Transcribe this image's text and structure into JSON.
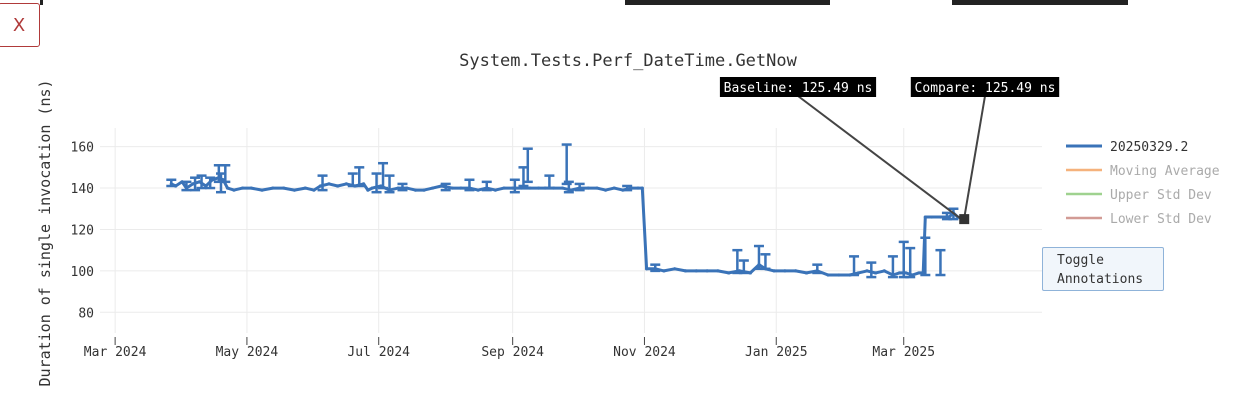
{
  "close_button_label": "X",
  "toggle_button_label": "Toggle Annotations",
  "colors": {
    "series": "#3a73b8",
    "moving_average": "#f5b27c",
    "upper_std": "#9fd28f",
    "lower_std": "#d29b95",
    "grid": "#ebebeb",
    "annotation_bg": "#000000"
  },
  "chart_data": {
    "type": "line",
    "title": "System.Tests.Perf_DateTime.GetNow",
    "ylabel": "Duration of single invocation (ns)",
    "xlabel": "",
    "xlim": [
      "2024-02-23",
      "2025-05-04"
    ],
    "ylim": [
      70,
      169
    ],
    "grid": true,
    "legend_position": "right",
    "x_ticks": [
      {
        "date": "2024-03-01",
        "label": "Mar 2024"
      },
      {
        "date": "2024-05-01",
        "label": "May 2024"
      },
      {
        "date": "2024-07-01",
        "label": "Jul 2024"
      },
      {
        "date": "2024-09-01",
        "label": "Sep 2024"
      },
      {
        "date": "2024-11-01",
        "label": "Nov 2024"
      },
      {
        "date": "2025-01-01",
        "label": "Jan 2025"
      },
      {
        "date": "2025-03-01",
        "label": "Mar 2025"
      }
    ],
    "y_ticks": [
      80,
      100,
      120,
      140,
      160
    ],
    "series": [
      {
        "name": "20250329.2",
        "points": [
          [
            "2024-03-27",
            142
          ],
          [
            "2024-03-29",
            141
          ],
          [
            "2024-04-01",
            143
          ],
          [
            "2024-04-03",
            140
          ],
          [
            "2024-04-06",
            142
          ],
          [
            "2024-04-09",
            143
          ],
          [
            "2024-04-12",
            141
          ],
          [
            "2024-04-15",
            144
          ],
          [
            "2024-04-18",
            145
          ],
          [
            "2024-04-20",
            144
          ],
          [
            "2024-04-22",
            140
          ],
          [
            "2024-04-25",
            139
          ],
          [
            "2024-04-29",
            140
          ],
          [
            "2024-05-03",
            140
          ],
          [
            "2024-05-08",
            139
          ],
          [
            "2024-05-13",
            140
          ],
          [
            "2024-05-18",
            140
          ],
          [
            "2024-05-23",
            139
          ],
          [
            "2024-05-28",
            140
          ],
          [
            "2024-06-01",
            139
          ],
          [
            "2024-06-04",
            141
          ],
          [
            "2024-06-08",
            142
          ],
          [
            "2024-06-12",
            141
          ],
          [
            "2024-06-16",
            142
          ],
          [
            "2024-06-20",
            141
          ],
          [
            "2024-06-24",
            142
          ],
          [
            "2024-06-26",
            139
          ],
          [
            "2024-06-28",
            140
          ],
          [
            "2024-07-02",
            141
          ],
          [
            "2024-07-06",
            139
          ],
          [
            "2024-07-10",
            140
          ],
          [
            "2024-07-14",
            140
          ],
          [
            "2024-07-18",
            139
          ],
          [
            "2024-07-22",
            139
          ],
          [
            "2024-07-26",
            140
          ],
          [
            "2024-07-30",
            141
          ],
          [
            "2024-08-04",
            140
          ],
          [
            "2024-08-08",
            140
          ],
          [
            "2024-08-12",
            140
          ],
          [
            "2024-08-16",
            139
          ],
          [
            "2024-08-20",
            140
          ],
          [
            "2024-08-24",
            139
          ],
          [
            "2024-08-28",
            140
          ],
          [
            "2024-09-01",
            140
          ],
          [
            "2024-09-05",
            140
          ],
          [
            "2024-09-09",
            140
          ],
          [
            "2024-09-13",
            140
          ],
          [
            "2024-09-16",
            140
          ],
          [
            "2024-09-20",
            140
          ],
          [
            "2024-09-24",
            140
          ],
          [
            "2024-09-28",
            139
          ],
          [
            "2024-10-02",
            140
          ],
          [
            "2024-10-06",
            140
          ],
          [
            "2024-10-10",
            140
          ],
          [
            "2024-10-14",
            139
          ],
          [
            "2024-10-18",
            140
          ],
          [
            "2024-10-22",
            139
          ],
          [
            "2024-10-26",
            140
          ],
          [
            "2024-10-29",
            140
          ],
          [
            "2024-10-31",
            140
          ],
          [
            "2024-11-02",
            101
          ],
          [
            "2024-11-06",
            101
          ],
          [
            "2024-11-10",
            100
          ],
          [
            "2024-11-15",
            101
          ],
          [
            "2024-11-20",
            100
          ],
          [
            "2024-11-25",
            100
          ],
          [
            "2024-11-30",
            100
          ],
          [
            "2024-12-05",
            100
          ],
          [
            "2024-12-10",
            99
          ],
          [
            "2024-12-15",
            100
          ],
          [
            "2024-12-20",
            99
          ],
          [
            "2024-12-24",
            103
          ],
          [
            "2024-12-27",
            101
          ],
          [
            "2024-12-31",
            100
          ],
          [
            "2025-01-05",
            100
          ],
          [
            "2025-01-10",
            100
          ],
          [
            "2025-01-15",
            99
          ],
          [
            "2025-01-20",
            100
          ],
          [
            "2025-01-25",
            98
          ],
          [
            "2025-01-30",
            98
          ],
          [
            "2025-02-04",
            98
          ],
          [
            "2025-02-08",
            99
          ],
          [
            "2025-02-12",
            100
          ],
          [
            "2025-02-16",
            99
          ],
          [
            "2025-02-20",
            100
          ],
          [
            "2025-02-24",
            98
          ],
          [
            "2025-02-27",
            99
          ],
          [
            "2025-03-02",
            99
          ],
          [
            "2025-03-05",
            98
          ],
          [
            "2025-03-08",
            99
          ],
          [
            "2025-03-10",
            99
          ],
          [
            "2025-03-11",
            126
          ],
          [
            "2025-03-14",
            126
          ],
          [
            "2025-03-18",
            126
          ],
          [
            "2025-03-22",
            126
          ],
          [
            "2025-03-24",
            128
          ],
          [
            "2025-03-26",
            126
          ],
          [
            "2025-03-29",
            125
          ]
        ],
        "error_bars": [
          [
            "2024-03-27",
            141,
            144
          ],
          [
            "2024-04-03",
            139,
            143
          ],
          [
            "2024-04-07",
            139,
            145
          ],
          [
            "2024-04-10",
            140,
            146
          ],
          [
            "2024-04-14",
            140,
            145
          ],
          [
            "2024-04-18",
            143,
            151
          ],
          [
            "2024-04-21",
            143,
            151
          ],
          [
            "2024-04-19",
            138,
            147
          ],
          [
            "2024-06-05",
            139,
            146
          ],
          [
            "2024-06-19",
            141,
            147
          ],
          [
            "2024-06-22",
            141,
            150
          ],
          [
            "2024-06-30",
            138,
            147
          ],
          [
            "2024-07-03",
            140,
            152
          ],
          [
            "2024-07-06",
            138,
            146
          ],
          [
            "2024-07-12",
            139,
            142
          ],
          [
            "2024-08-01",
            139,
            142
          ],
          [
            "2024-08-12",
            139,
            144
          ],
          [
            "2024-08-20",
            139,
            143
          ],
          [
            "2024-09-02",
            138,
            144
          ],
          [
            "2024-09-06",
            141,
            150
          ],
          [
            "2024-09-08",
            143,
            159
          ],
          [
            "2024-09-18",
            140,
            146
          ],
          [
            "2024-09-26",
            142,
            161
          ],
          [
            "2024-09-27",
            138,
            143
          ],
          [
            "2024-10-02",
            139,
            142
          ],
          [
            "2024-10-24",
            139,
            141
          ],
          [
            "2024-11-06",
            100,
            103
          ],
          [
            "2024-12-14",
            99,
            110
          ],
          [
            "2024-12-17",
            99,
            105
          ],
          [
            "2024-12-24",
            101,
            112
          ],
          [
            "2024-12-27",
            101,
            108
          ],
          [
            "2025-01-20",
            99,
            103
          ],
          [
            "2025-02-06",
            98,
            107
          ],
          [
            "2025-02-14",
            97,
            104
          ],
          [
            "2025-02-24",
            97,
            107
          ],
          [
            "2025-03-01",
            97,
            114
          ],
          [
            "2025-03-04",
            97,
            111
          ],
          [
            "2025-03-11",
            98,
            116
          ],
          [
            "2025-03-18",
            98,
            110
          ],
          [
            "2025-03-21",
            125,
            128
          ],
          [
            "2025-03-24",
            125,
            130
          ]
        ]
      },
      {
        "name": "Moving Average"
      },
      {
        "name": "Upper Std Dev"
      },
      {
        "name": "Lower Std Dev"
      }
    ],
    "annotations": [
      {
        "text": "Baseline: 125.49 ns",
        "date": "2025-03-27",
        "value": 125.49
      },
      {
        "text": "Compare: 125.49 ns",
        "date": "2025-03-29",
        "value": 125.49
      }
    ]
  }
}
